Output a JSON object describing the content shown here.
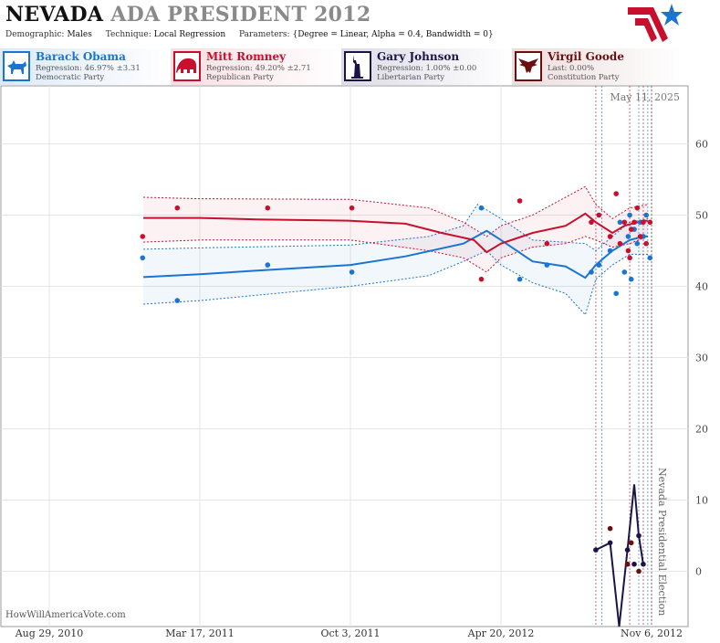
{
  "header": {
    "state": "NEVADA",
    "title_rest": "ADA PRESIDENT 2012",
    "demographic_label": "Demographic:",
    "demographic": "Males",
    "technique_label": "Technique:",
    "technique": "Local Regression",
    "parameters_label": "Parameters:",
    "parameters": "{Degree = Linear, Alpha = 0.4, Bandwidth = 0}"
  },
  "candidates": [
    {
      "name": "Barack Obama",
      "stat": "Regression: 46.97% ±3.31",
      "party": "Democratic Party",
      "color": "#1a75d2",
      "icon": "donkey-icon"
    },
    {
      "name": "Mitt Romney",
      "stat": "Regression: 49.20% ±2.71",
      "party": "Republican Party",
      "color": "#c8102e",
      "icon": "elephant-icon"
    },
    {
      "name": "Gary Johnson",
      "stat": "Regression: 1.00% ±0.00",
      "party": "Libertarian Party",
      "color": "#1b1446",
      "icon": "liberty-statue-icon"
    },
    {
      "name": "Virgil Goode",
      "stat": "Last: 0.00%",
      "party": "Constitution Party",
      "color": "#6b0f0f",
      "icon": "eagle-icon"
    }
  ],
  "footer": {
    "source": "HowWillAmericaVote.com"
  },
  "chart_data": {
    "type": "line",
    "date_label": "May 11, 2025",
    "event_label": "Nevada Presidential Election",
    "event_date": "2012-11-06",
    "x_ticks": [
      "Aug 29, 2010",
      "Mar 17, 2011",
      "Oct 3, 2011",
      "Apr 20, 2012",
      "Nov 6, 2012"
    ],
    "x_tick_dates": [
      "2010-08-29",
      "2011-03-17",
      "2011-10-03",
      "2012-04-20",
      "2012-11-06"
    ],
    "y_ticks": [
      0,
      10,
      20,
      30,
      40,
      50,
      60
    ],
    "ylim": [
      -8,
      68
    ],
    "grid": true,
    "poll_dates": [
      "2012-08-24",
      "2012-09-01",
      "2012-10-08",
      "2012-10-20",
      "2012-10-26",
      "2012-11-01"
    ],
    "series": [
      {
        "name": "Barack Obama",
        "color": "#1a75d2",
        "trend": [
          [
            "2011-01-01",
            41.3
          ],
          [
            "2011-03-17",
            41.7
          ],
          [
            "2011-06-01",
            42.2
          ],
          [
            "2011-10-03",
            43.0
          ],
          [
            "2011-12-15",
            44.2
          ],
          [
            "2012-03-01",
            46.0
          ],
          [
            "2012-04-01",
            47.8
          ],
          [
            "2012-04-20",
            46.5
          ],
          [
            "2012-06-01",
            43.5
          ],
          [
            "2012-07-15",
            42.8
          ],
          [
            "2012-08-10",
            41.2
          ],
          [
            "2012-08-24",
            43.0
          ],
          [
            "2012-09-15",
            45.0
          ],
          [
            "2012-10-08",
            46.5
          ],
          [
            "2012-10-26",
            47.0
          ],
          [
            "2012-11-01",
            47.0
          ]
        ],
        "upper": [
          [
            "2011-01-01",
            45.2
          ],
          [
            "2011-03-17",
            45.4
          ],
          [
            "2011-10-03",
            45.8
          ],
          [
            "2012-01-15",
            47.0
          ],
          [
            "2012-03-01",
            48.5
          ],
          [
            "2012-03-20",
            51.5
          ],
          [
            "2012-04-20",
            49.5
          ],
          [
            "2012-06-01",
            46.5
          ],
          [
            "2012-08-10",
            46.0
          ],
          [
            "2012-08-24",
            45.0
          ],
          [
            "2012-09-15",
            47.0
          ],
          [
            "2012-10-08",
            49.0
          ],
          [
            "2012-11-01",
            49.5
          ]
        ],
        "lower": [
          [
            "2011-01-01",
            37.5
          ],
          [
            "2011-03-17",
            38.0
          ],
          [
            "2011-10-03",
            40.0
          ],
          [
            "2012-01-15",
            41.5
          ],
          [
            "2012-03-01",
            43.5
          ],
          [
            "2012-04-01",
            45.0
          ],
          [
            "2012-04-20",
            43.0
          ],
          [
            "2012-06-01",
            40.5
          ],
          [
            "2012-07-15",
            39.0
          ],
          [
            "2012-08-10",
            36.0
          ],
          [
            "2012-08-24",
            41.0
          ],
          [
            "2012-09-15",
            43.0
          ],
          [
            "2012-10-08",
            44.5
          ],
          [
            "2012-11-01",
            44.5
          ]
        ],
        "points": [
          [
            "2010-12-31",
            44
          ],
          [
            "2011-02-15",
            38
          ],
          [
            "2011-06-15",
            43
          ],
          [
            "2011-10-05",
            42
          ],
          [
            "2012-03-25",
            51
          ],
          [
            "2012-05-15",
            41
          ],
          [
            "2012-06-20",
            43
          ],
          [
            "2012-08-18",
            42
          ],
          [
            "2012-08-28",
            43
          ],
          [
            "2012-09-12",
            45
          ],
          [
            "2012-09-20",
            39
          ],
          [
            "2012-09-25",
            49
          ],
          [
            "2012-10-01",
            42
          ],
          [
            "2012-10-06",
            47
          ],
          [
            "2012-10-08",
            50
          ],
          [
            "2012-10-10",
            41
          ],
          [
            "2012-10-14",
            48
          ],
          [
            "2012-10-18",
            46
          ],
          [
            "2012-10-22",
            49
          ],
          [
            "2012-10-26",
            47
          ],
          [
            "2012-10-30",
            50
          ],
          [
            "2012-11-04",
            44
          ]
        ]
      },
      {
        "name": "Mitt Romney",
        "color": "#c8102e",
        "trend": [
          [
            "2011-01-01",
            49.6
          ],
          [
            "2011-03-17",
            49.6
          ],
          [
            "2011-06-01",
            49.4
          ],
          [
            "2011-10-03",
            49.2
          ],
          [
            "2011-12-15",
            48.8
          ],
          [
            "2012-02-01",
            47.5
          ],
          [
            "2012-03-15",
            46.5
          ],
          [
            "2012-04-01",
            44.8
          ],
          [
            "2012-04-20",
            46.0
          ],
          [
            "2012-06-01",
            47.5
          ],
          [
            "2012-07-15",
            48.5
          ],
          [
            "2012-08-10",
            50.2
          ],
          [
            "2012-08-24",
            49.0
          ],
          [
            "2012-09-15",
            47.5
          ],
          [
            "2012-10-01",
            48.5
          ],
          [
            "2012-10-26",
            49.2
          ],
          [
            "2012-11-01",
            49.2
          ]
        ],
        "upper": [
          [
            "2011-01-01",
            52.5
          ],
          [
            "2011-03-17",
            52.3
          ],
          [
            "2011-10-03",
            52.2
          ],
          [
            "2012-01-15",
            51.0
          ],
          [
            "2012-03-01",
            49.0
          ],
          [
            "2012-04-01",
            47.0
          ],
          [
            "2012-04-20",
            48.5
          ],
          [
            "2012-06-01",
            50.0
          ],
          [
            "2012-08-10",
            54.0
          ],
          [
            "2012-08-24",
            51.5
          ],
          [
            "2012-09-15",
            49.5
          ],
          [
            "2012-10-08",
            51.0
          ],
          [
            "2012-11-01",
            51.5
          ]
        ],
        "lower": [
          [
            "2011-01-01",
            46.2
          ],
          [
            "2011-03-17",
            46.5
          ],
          [
            "2011-10-03",
            46.5
          ],
          [
            "2012-01-15",
            45.0
          ],
          [
            "2012-03-01",
            44.0
          ],
          [
            "2012-04-01",
            42.0
          ],
          [
            "2012-04-20",
            44.0
          ],
          [
            "2012-06-01",
            45.5
          ],
          [
            "2012-07-15",
            46.0
          ],
          [
            "2012-08-10",
            47.0
          ],
          [
            "2012-08-24",
            46.5
          ],
          [
            "2012-09-15",
            45.5
          ],
          [
            "2012-10-08",
            46.0
          ],
          [
            "2012-11-01",
            47.0
          ]
        ],
        "points": [
          [
            "2010-12-31",
            47
          ],
          [
            "2011-02-15",
            51
          ],
          [
            "2011-06-15",
            51
          ],
          [
            "2011-10-05",
            51
          ],
          [
            "2012-03-25",
            41
          ],
          [
            "2012-05-15",
            52
          ],
          [
            "2012-06-20",
            46
          ],
          [
            "2012-08-18",
            49
          ],
          [
            "2012-08-28",
            50
          ],
          [
            "2012-09-12",
            47
          ],
          [
            "2012-09-20",
            53
          ],
          [
            "2012-09-25",
            46
          ],
          [
            "2012-10-01",
            49
          ],
          [
            "2012-10-06",
            45
          ],
          [
            "2012-10-08",
            44
          ],
          [
            "2012-10-10",
            48
          ],
          [
            "2012-10-14",
            49
          ],
          [
            "2012-10-18",
            51
          ],
          [
            "2012-10-22",
            47
          ],
          [
            "2012-10-26",
            49
          ],
          [
            "2012-10-30",
            46
          ],
          [
            "2012-11-04",
            49
          ]
        ]
      },
      {
        "name": "Gary Johnson",
        "color": "#1b1446",
        "trend": [
          [
            "2012-08-24",
            3.0
          ],
          [
            "2012-09-12",
            4.0
          ],
          [
            "2012-09-24",
            -9.0
          ],
          [
            "2012-10-05",
            3.0
          ],
          [
            "2012-10-14",
            12.2
          ],
          [
            "2012-10-20",
            5.0
          ],
          [
            "2012-10-26",
            1.0
          ]
        ],
        "points": [
          [
            "2012-08-24",
            3
          ],
          [
            "2012-09-12",
            4
          ],
          [
            "2012-10-05",
            3
          ],
          [
            "2012-10-14",
            1
          ],
          [
            "2012-10-20",
            5
          ],
          [
            "2012-10-26",
            1
          ]
        ]
      },
      {
        "name": "Virgil Goode",
        "color": "#6b0f0f",
        "points": [
          [
            "2012-09-12",
            6
          ],
          [
            "2012-10-05",
            1
          ],
          [
            "2012-10-10",
            4
          ],
          [
            "2012-10-20",
            0
          ]
        ]
      }
    ]
  }
}
